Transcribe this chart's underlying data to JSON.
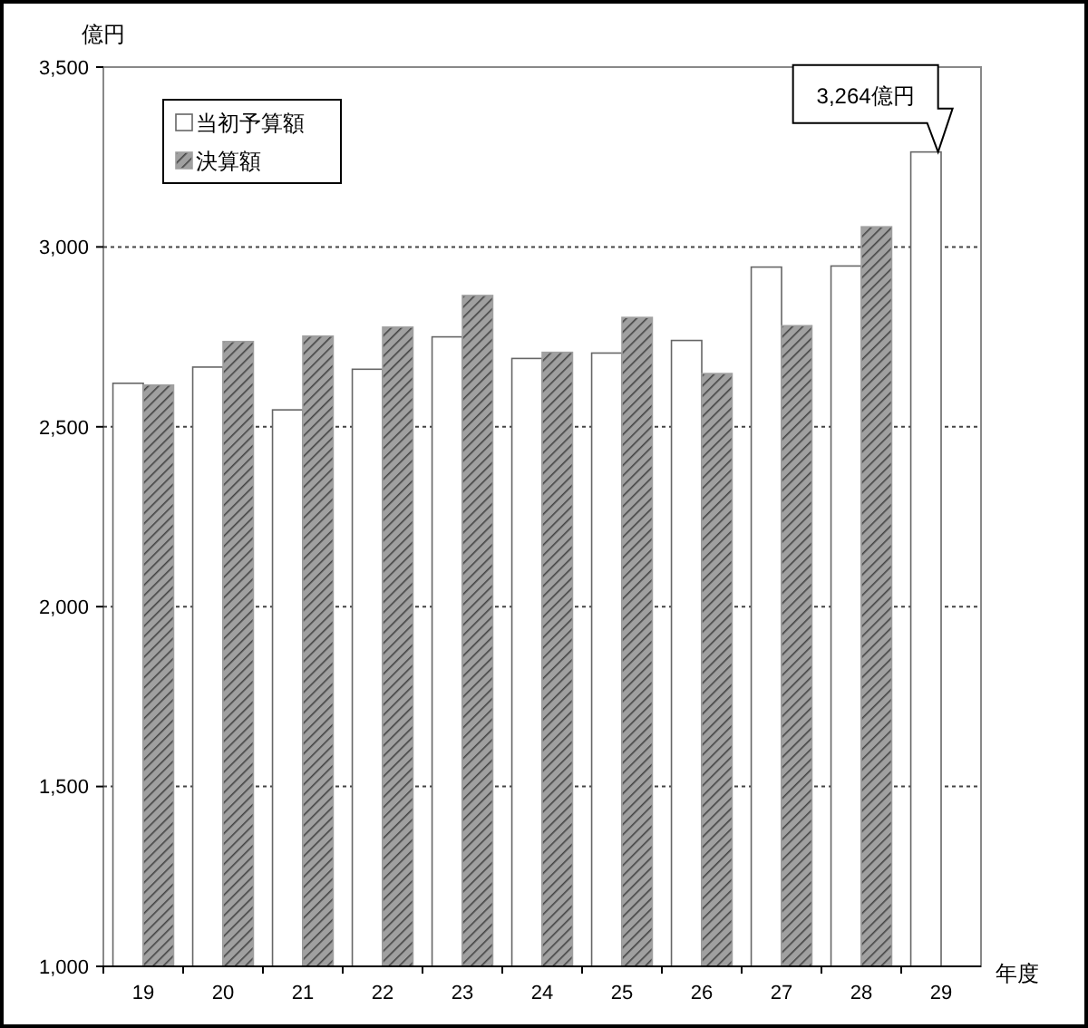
{
  "chart_data": {
    "type": "bar",
    "xlabel": "年度",
    "ylabel": "億円",
    "categories": [
      "19",
      "20",
      "21",
      "22",
      "23",
      "24",
      "25",
      "26",
      "27",
      "28",
      "29"
    ],
    "series": [
      {
        "name": "当初予算額",
        "color": "#ffffff",
        "values": [
          2621,
          2666,
          2547,
          2660,
          2750,
          2690,
          2705,
          2740,
          2944,
          2947,
          3264
        ]
      },
      {
        "name": "決算額",
        "color": "#a0a0a0",
        "values": [
          2616,
          2737,
          2752,
          2777,
          2865,
          2707,
          2804,
          2648,
          2781,
          3056,
          null
        ]
      }
    ],
    "ylim": [
      1000,
      3500
    ],
    "yticks": [
      {
        "value": 1000,
        "label": "1,000"
      },
      {
        "value": 1500,
        "label": "1,500"
      },
      {
        "value": 2000,
        "label": "2,000"
      },
      {
        "value": 2500,
        "label": "2,500"
      },
      {
        "value": 3000,
        "label": "3,000"
      },
      {
        "value": 3500,
        "label": "3,500"
      }
    ],
    "grid": "y",
    "legend": "top left",
    "annotations": [
      {
        "text": "3,264億円",
        "x": "29",
        "y": 3264
      }
    ]
  }
}
